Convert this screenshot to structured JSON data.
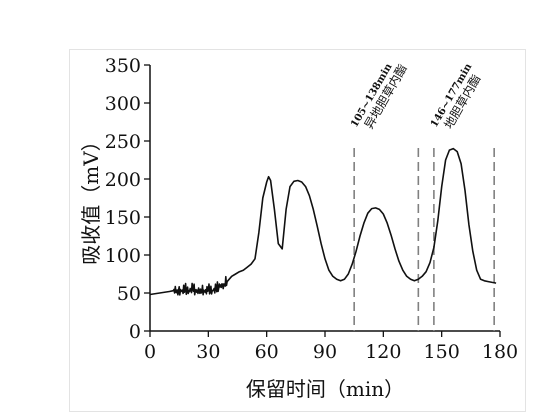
{
  "chart_data": {
    "type": "line",
    "title": "",
    "xlabel": "保留时间（min）",
    "ylabel": "吸收值（mV）",
    "xlim": [
      0,
      180
    ],
    "ylim": [
      0,
      350
    ],
    "xticks": [
      "0",
      "30",
      "60",
      "90",
      "120",
      "150",
      "180"
    ],
    "yticks": [
      "0",
      "50",
      "100",
      "150",
      "200",
      "250",
      "300",
      "350"
    ],
    "grid": false,
    "series": [
      {
        "name": "",
        "x": [
          0,
          5,
          10,
          12,
          14,
          16,
          18,
          20,
          22,
          24,
          26,
          28,
          30,
          32,
          34,
          36,
          38,
          40,
          42,
          44,
          46,
          48,
          50,
          52,
          54,
          56,
          58,
          60,
          61,
          62,
          64,
          66,
          68,
          70,
          72,
          74,
          76,
          78,
          80,
          82,
          84,
          86,
          88,
          90,
          92,
          94,
          96,
          98,
          100,
          102,
          104,
          106,
          108,
          110,
          112,
          114,
          116,
          118,
          120,
          122,
          124,
          126,
          128,
          130,
          132,
          134,
          136,
          138,
          140,
          142,
          144,
          146,
          148,
          150,
          152,
          154,
          156,
          158,
          160,
          162,
          164,
          166,
          168,
          170,
          172,
          174,
          176,
          178
        ],
        "y": [
          48,
          50,
          52,
          53,
          54,
          52,
          55,
          53,
          56,
          51,
          55,
          52,
          54,
          53,
          56,
          58,
          62,
          66,
          72,
          75,
          78,
          80,
          84,
          88,
          95,
          130,
          175,
          196,
          203,
          198,
          160,
          115,
          108,
          160,
          190,
          197,
          198,
          196,
          190,
          178,
          160,
          138,
          115,
          95,
          80,
          72,
          68,
          66,
          68,
          75,
          88,
          105,
          125,
          142,
          155,
          161,
          162,
          160,
          154,
          142,
          126,
          108,
          92,
          80,
          72,
          68,
          66,
          68,
          72,
          78,
          90,
          110,
          145,
          190,
          225,
          238,
          240,
          236,
          220,
          185,
          140,
          105,
          80,
          68,
          66,
          65,
          64,
          63
        ]
      }
    ],
    "regions": [
      {
        "label_range": "105~138min",
        "label_name": "异地胆草内酯",
        "x_start": 105,
        "x_end": 138
      },
      {
        "label_range": "146~177min",
        "label_name": "地胆草内酯",
        "x_start": 146,
        "x_end": 177
      }
    ],
    "colors": {
      "line": "#111111",
      "region_dash": "#808080"
    }
  }
}
